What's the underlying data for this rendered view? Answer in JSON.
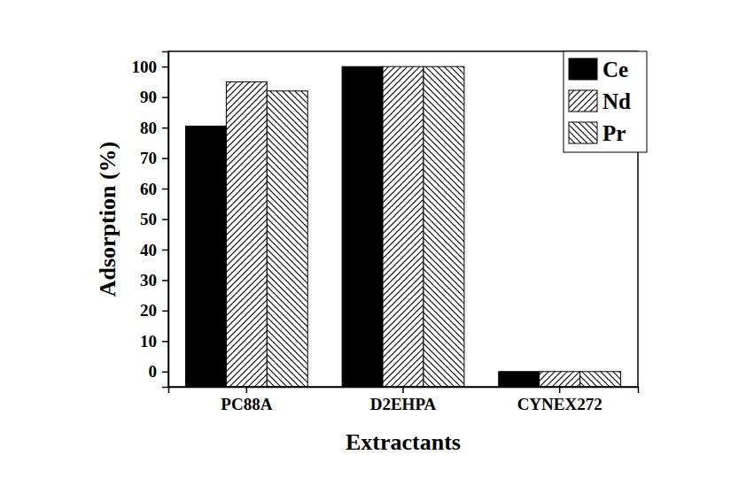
{
  "chart_data": {
    "type": "bar",
    "x_label": "Extractants",
    "y_label": "Adsorption (%)",
    "categories": [
      "PC88A",
      "D2EHPA",
      "CYNEX272"
    ],
    "series": [
      {
        "name": "Ce",
        "color": "#000000",
        "values": [
          80.5,
          100,
          0
        ]
      },
      {
        "name": "Nd",
        "color": "#000000",
        "values": [
          95,
          100,
          0
        ]
      },
      {
        "name": "Pr",
        "color": "#000000",
        "values": [
          92,
          100,
          0
        ]
      }
    ],
    "ylim": [
      -5,
      105
    ],
    "yticks": [
      0,
      10,
      20,
      30,
      40,
      50,
      60,
      70,
      80,
      90,
      100
    ],
    "legend": "upper right"
  }
}
